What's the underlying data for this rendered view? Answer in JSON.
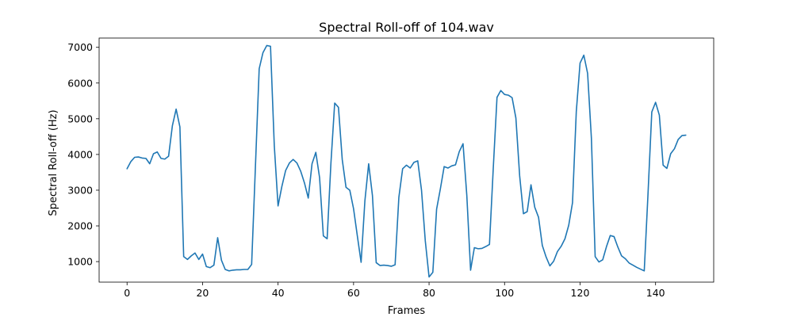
{
  "chart_data": {
    "type": "line",
    "title": "Spectral Roll-off of 104.wav",
    "xlabel": "Frames",
    "ylabel": "Spectral Roll-off (Hz)",
    "xlim": [
      -7.4,
      155.4
    ],
    "ylim": [
      425,
      7260
    ],
    "xticks": [
      0,
      20,
      40,
      60,
      80,
      100,
      120,
      140
    ],
    "yticks": [
      1000,
      2000,
      3000,
      4000,
      5000,
      6000,
      7000
    ],
    "grid": false,
    "colors": {
      "line": "#1f77b4",
      "axes": "#000000",
      "background": "#ffffff"
    },
    "series": [
      {
        "x": [
          0,
          1,
          2,
          3,
          4,
          5,
          6,
          7,
          8,
          9,
          10,
          11,
          12,
          13,
          14,
          15,
          16,
          17,
          18,
          19,
          20,
          21,
          22,
          23,
          24,
          25,
          26,
          27,
          28,
          29,
          30,
          31,
          32,
          33,
          34,
          35,
          36,
          37,
          38,
          39,
          40,
          41,
          42,
          43,
          44,
          45,
          46,
          47,
          48,
          49,
          50,
          51,
          52,
          53,
          54,
          55,
          56,
          57,
          58,
          59,
          60,
          61,
          62,
          63,
          64,
          65,
          66,
          67,
          68,
          69,
          70,
          71,
          72,
          73,
          74,
          75,
          76,
          77,
          78,
          79,
          80,
          81,
          82,
          83,
          84,
          85,
          86,
          87,
          88,
          89,
          90,
          91,
          92,
          93,
          94,
          95,
          96,
          97,
          98,
          99,
          100,
          101,
          102,
          103,
          104,
          105,
          106,
          107,
          108,
          109,
          110,
          111,
          112,
          113,
          114,
          115,
          116,
          117,
          118,
          119,
          120,
          121,
          122,
          123,
          124,
          125,
          126,
          127,
          128,
          129,
          130,
          131,
          132,
          133,
          134,
          135,
          136,
          137,
          138,
          139,
          140,
          141,
          142,
          143,
          144,
          145,
          146,
          147,
          148
        ],
        "y": [
          3600,
          3800,
          3920,
          3930,
          3900,
          3890,
          3740,
          4020,
          4070,
          3890,
          3870,
          3950,
          4800,
          5270,
          4770,
          1140,
          1060,
          1160,
          1240,
          1060,
          1210,
          860,
          830,
          900,
          1670,
          1040,
          780,
          740,
          760,
          770,
          770,
          780,
          780,
          920,
          3650,
          6400,
          6850,
          7050,
          7030,
          4250,
          2560,
          3100,
          3550,
          3760,
          3860,
          3760,
          3530,
          3200,
          2780,
          3740,
          4060,
          3350,
          1720,
          1640,
          3750,
          5440,
          5320,
          3860,
          3080,
          3000,
          2480,
          1720,
          980,
          2700,
          3740,
          2850,
          970,
          890,
          900,
          890,
          870,
          910,
          2800,
          3600,
          3700,
          3620,
          3780,
          3820,
          3000,
          1580,
          570,
          700,
          2470,
          3040,
          3660,
          3620,
          3680,
          3710,
          4080,
          4300,
          2850,
          760,
          1390,
          1360,
          1370,
          1420,
          1480,
          3600,
          5600,
          5790,
          5680,
          5660,
          5590,
          5020,
          3400,
          2340,
          2400,
          3150,
          2520,
          2240,
          1450,
          1130,
          880,
          1010,
          1280,
          1430,
          1640,
          2020,
          2650,
          5200,
          6560,
          6780,
          6270,
          4460,
          1140,
          990,
          1050,
          1420,
          1730,
          1700,
          1410,
          1160,
          1080,
          960,
          900,
          840,
          790,
          740,
          2900,
          5190,
          5460,
          5100,
          3700,
          3610,
          4020,
          4160,
          4420,
          4530,
          4540
        ]
      }
    ]
  }
}
